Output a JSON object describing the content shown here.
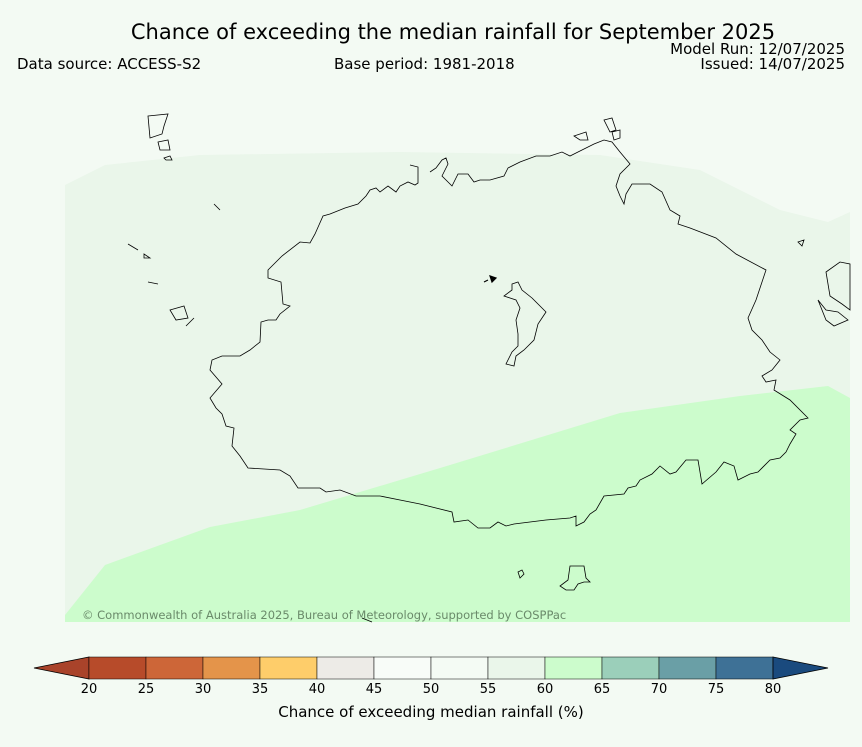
{
  "title": "Chance of exceeding the median rainfall for September 2025",
  "data_source": "Data source: ACCESS-S2",
  "base_period": "Base period: 1981-2018",
  "model_run": "Model Run: 12/07/2025",
  "issued": "Issued: 14/07/2025",
  "copyright": "© Commonwealth of Australia 2025, Bureau of Meteorology, supported by COSPPac",
  "colorbar": {
    "label": "Chance of exceeding median rainfall (%)",
    "ticks": [
      "20",
      "25",
      "30",
      "35",
      "40",
      "45",
      "50",
      "55",
      "60",
      "65",
      "70",
      "75",
      "80"
    ],
    "colors": [
      "#a9432a",
      "#b74b2a",
      "#cd6638",
      "#e4944a",
      "#fecd6a",
      "#edebe7",
      "#f8fcf8",
      "#f4fbf4",
      "#eaf6ea",
      "#ccfccc",
      "#9bcfba",
      "#6a9fa6",
      "#3e7196",
      "#1a4a7e"
    ],
    "extend": "both"
  },
  "map": {
    "regions": [
      {
        "range": "55-60",
        "color": "#eaf6ea"
      },
      {
        "range": "60-65",
        "color": "#ccfccc"
      }
    ],
    "background_color": "#f3faf3",
    "coastline_color": "#000000"
  }
}
